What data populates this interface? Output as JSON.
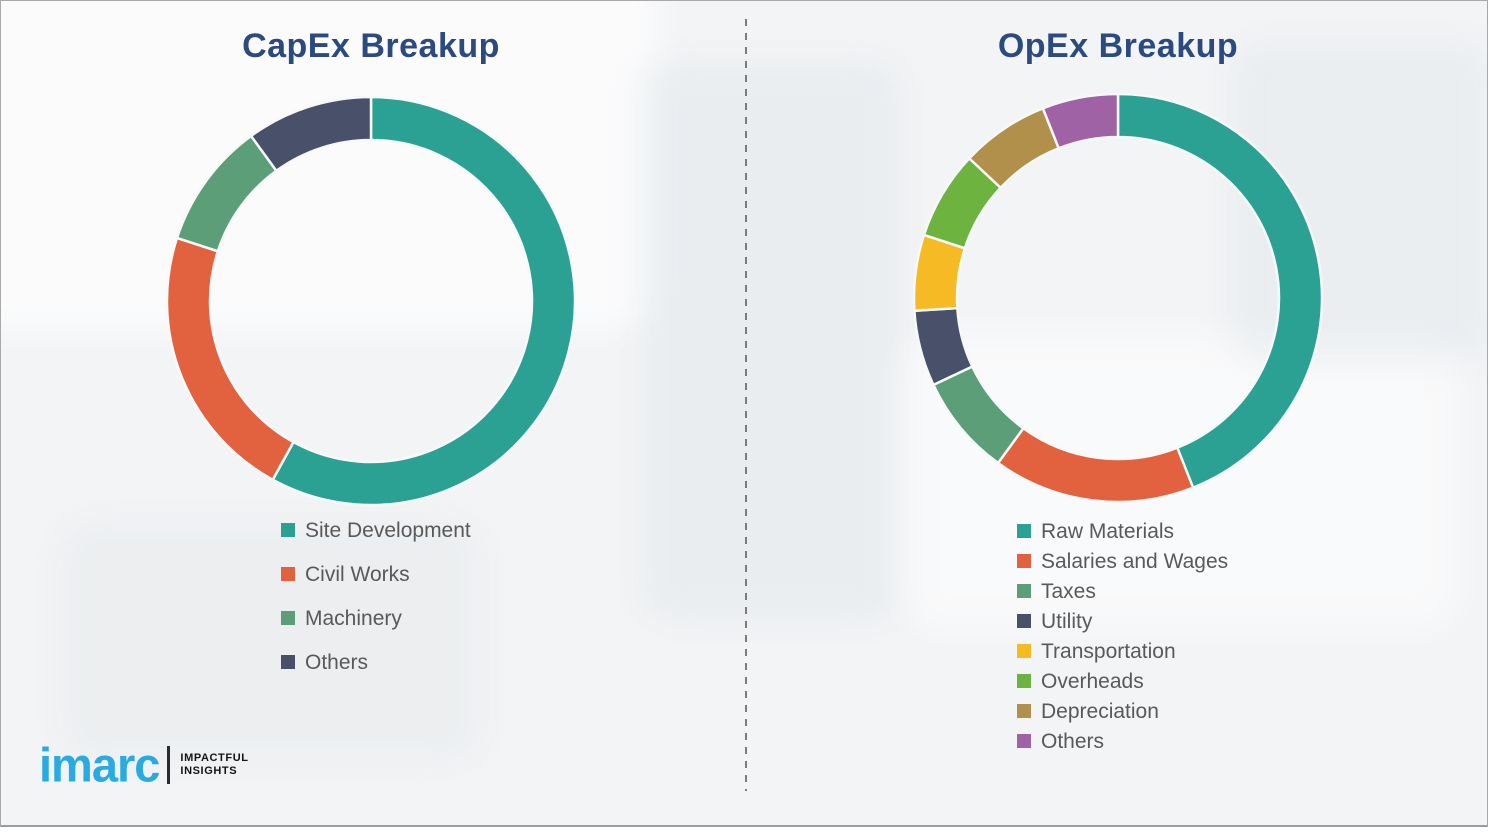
{
  "colors": {
    "title": "#2b4a80",
    "legend_text": "#595959",
    "divider": "#7b7b7b",
    "logo_blue": "#29abe2",
    "background": "#f3f4f6",
    "segment_gap": "#f7f8f9"
  },
  "logo": {
    "brand": "imarc",
    "tagline": [
      "IMPACTFUL",
      "INSIGHTS"
    ]
  },
  "chart_data": [
    {
      "type": "pie",
      "subtype": "donut",
      "title": "CapEx Breakup",
      "start_angle_deg": 0,
      "direction": "clockwise",
      "legend_position": "bottom",
      "segments": [
        {
          "label": "Site Development",
          "value": 58,
          "color": "#2aa192"
        },
        {
          "label": "Civil Works",
          "value": 22,
          "color": "#e2613f"
        },
        {
          "label": "Machinery",
          "value": 10,
          "color": "#5b9e77"
        },
        {
          "label": "Others",
          "value": 10,
          "color": "#49516a"
        }
      ]
    },
    {
      "type": "pie",
      "subtype": "donut",
      "title": "OpEx Breakup",
      "start_angle_deg": 0,
      "direction": "clockwise",
      "legend_position": "bottom",
      "segments": [
        {
          "label": "Raw Materials",
          "value": 44,
          "color": "#2aa192"
        },
        {
          "label": "Salaries and Wages",
          "value": 16,
          "color": "#e2613f"
        },
        {
          "label": "Taxes",
          "value": 8,
          "color": "#5b9e77"
        },
        {
          "label": "Utility",
          "value": 6,
          "color": "#49516a"
        },
        {
          "label": "Transportation",
          "value": 6,
          "color": "#f6ba24"
        },
        {
          "label": "Overheads",
          "value": 7,
          "color": "#6db33f"
        },
        {
          "label": "Depreciation",
          "value": 7,
          "color": "#b0904a"
        },
        {
          "label": "Others",
          "value": 6,
          "color": "#9f62a5"
        }
      ]
    }
  ]
}
